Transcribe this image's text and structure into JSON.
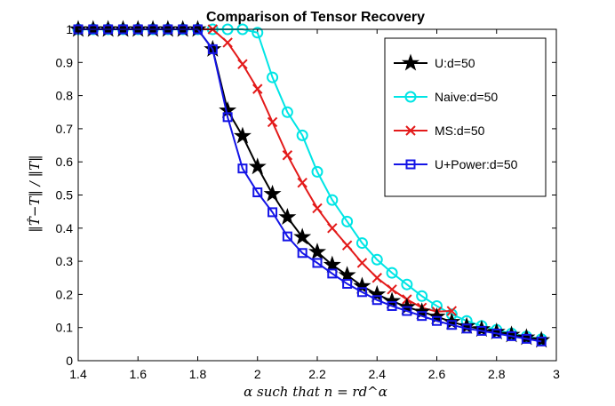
{
  "chart_data": {
    "type": "line",
    "title": "Comparison of Tensor Recovery",
    "xlabel": "α such that n = rd^α",
    "ylabel": "‖T̂−T‖ / ‖T‖",
    "xlim": [
      1.4,
      3.0
    ],
    "ylim": [
      0,
      1
    ],
    "xticks": [
      "1.4",
      "1.6",
      "1.8",
      "2",
      "2.2",
      "2.4",
      "2.6",
      "2.8",
      "3"
    ],
    "yticks": [
      "0",
      "0.1",
      "0.2",
      "0.3",
      "0.4",
      "0.5",
      "0.6",
      "0.7",
      "0.8",
      "0.9",
      "1"
    ],
    "legend_position": "top-right",
    "series": [
      {
        "name": "U:d=50",
        "color": "#000000",
        "marker": "star",
        "x": [
          1.4,
          1.45,
          1.5,
          1.55,
          1.6,
          1.65,
          1.7,
          1.75,
          1.8,
          1.85,
          1.9,
          1.95,
          2.0,
          2.05,
          2.1,
          2.15,
          2.2,
          2.25,
          2.3,
          2.35,
          2.4,
          2.45,
          2.5,
          2.55,
          2.6,
          2.65,
          2.7,
          2.75,
          2.8,
          2.85,
          2.9,
          2.95
        ],
        "y": [
          1,
          1,
          1,
          1,
          1,
          1,
          1,
          1,
          1,
          0.94,
          0.755,
          0.678,
          0.585,
          0.503,
          0.433,
          0.373,
          0.328,
          0.289,
          0.258,
          0.225,
          0.2,
          0.18,
          0.162,
          0.148,
          0.133,
          0.117,
          0.104,
          0.095,
          0.087,
          0.078,
          0.07,
          0.062
        ]
      },
      {
        "name": "Naive:d=50",
        "color": "#00e5e5",
        "marker": "circle",
        "x": [
          1.4,
          1.45,
          1.5,
          1.55,
          1.6,
          1.65,
          1.7,
          1.75,
          1.8,
          1.85,
          1.9,
          1.95,
          2.0,
          2.05,
          2.1,
          2.15,
          2.2,
          2.25,
          2.3,
          2.35,
          2.4,
          2.45,
          2.5,
          2.55,
          2.6,
          2.65,
          2.7,
          2.75,
          2.8,
          2.85,
          2.9,
          2.95
        ],
        "y": [
          1,
          1,
          1,
          1,
          1,
          1,
          1,
          1,
          1,
          1,
          1,
          1,
          0.99,
          0.855,
          0.75,
          0.68,
          0.57,
          0.485,
          0.42,
          0.355,
          0.305,
          0.265,
          0.23,
          0.195,
          0.165,
          0.14,
          0.12,
          0.105,
          0.093,
          0.082,
          0.073,
          0.065
        ]
      },
      {
        "name": "MS:d=50",
        "color": "#e31a1a",
        "marker": "x",
        "x": [
          1.4,
          1.45,
          1.5,
          1.55,
          1.6,
          1.65,
          1.7,
          1.75,
          1.8,
          1.85,
          1.9,
          1.95,
          2.0,
          2.05,
          2.1,
          2.15,
          2.2,
          2.25,
          2.3,
          2.35,
          2.4,
          2.45,
          2.5,
          2.55,
          2.6,
          2.65
        ],
        "y": [
          1,
          1,
          1,
          1,
          1,
          1,
          1,
          1,
          1,
          1,
          0.96,
          0.895,
          0.82,
          0.72,
          0.62,
          0.537,
          0.46,
          0.4,
          0.348,
          0.295,
          0.25,
          0.215,
          0.185,
          0.16,
          0.148,
          0.15
        ]
      },
      {
        "name": "U+Power:d=50",
        "color": "#1414e6",
        "marker": "square",
        "x": [
          1.4,
          1.45,
          1.5,
          1.55,
          1.6,
          1.65,
          1.7,
          1.75,
          1.8,
          1.85,
          1.9,
          1.95,
          2.0,
          2.05,
          2.1,
          2.15,
          2.2,
          2.25,
          2.3,
          2.35,
          2.4,
          2.45,
          2.5,
          2.55,
          2.6,
          2.65,
          2.7,
          2.75,
          2.8,
          2.85,
          2.9,
          2.95
        ],
        "y": [
          1,
          1,
          1,
          1,
          1,
          1,
          1,
          1,
          1,
          0.94,
          0.735,
          0.58,
          0.508,
          0.448,
          0.375,
          0.325,
          0.295,
          0.263,
          0.232,
          0.207,
          0.183,
          0.165,
          0.15,
          0.135,
          0.12,
          0.108,
          0.097,
          0.09,
          0.082,
          0.074,
          0.066,
          0.058
        ]
      }
    ]
  }
}
